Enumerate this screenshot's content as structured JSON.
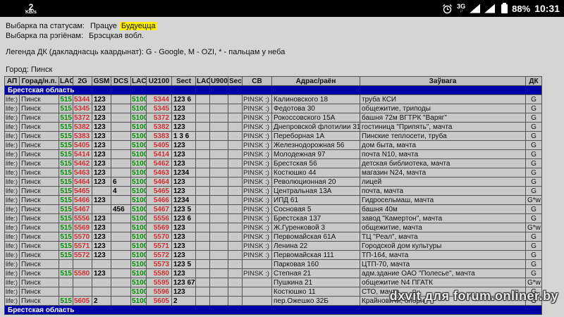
{
  "status_bar": {
    "network_speed_value": "2",
    "network_speed_unit": "KB/s",
    "network_type": "3G",
    "network_arrows": "↓↑",
    "battery_percent": "88%",
    "time": "10:31"
  },
  "filters": {
    "status_label": "Выбарка па статусам:",
    "status_option_1": "Працуе",
    "status_option_2": "Будуецца",
    "region_label": "Выбарка па рэгіёнам:",
    "region_value": "Брэсцкая вобл.",
    "legend": "Легенда ДК (дакладнасць каардынат): G - Google, M - OZI, * - пальцам у неба",
    "city_line": "Город: Пинск"
  },
  "table": {
    "headers": [
      "АП",
      "Горад/н.п.",
      "LAC",
      "2G",
      "GSM",
      "DCS",
      "LAC",
      "U2100",
      "Sect",
      "LAC",
      "U900",
      "Sect",
      "СВ",
      "Адрас/раён",
      "Заўвага",
      "ДК"
    ],
    "section_top": "Брестская область",
    "section_bottom": "Брестская область",
    "rows": [
      {
        "ap": "life:)",
        "city": "Пинск",
        "lac": "515",
        "g2": "5344",
        "gsm": "123",
        "dcs": "",
        "lac3": "5100",
        "u21": "5344",
        "sect3": "123 6",
        "lac9": "",
        "u900": "",
        "sect9": "",
        "sv": "PINSK :)",
        "addr": "Калиновского 18",
        "note": "труба КСИ",
        "dk": "G"
      },
      {
        "ap": "life:)",
        "city": "Пинск",
        "lac": "515",
        "g2": "5345",
        "gsm": "123",
        "dcs": "",
        "lac3": "5100",
        "u21": "5345",
        "sect3": "123",
        "lac9": "",
        "u900": "",
        "sect9": "",
        "sv": "PINSK :)",
        "addr": "Федотова 30",
        "note": "общежитие, триподы",
        "dk": "G"
      },
      {
        "ap": "life:)",
        "city": "Пинск",
        "lac": "515",
        "g2": "5372",
        "gsm": "123",
        "dcs": "",
        "lac3": "5100",
        "u21": "5372",
        "sect3": "123",
        "lac9": "",
        "u900": "",
        "sect9": "",
        "sv": "PINSK :)",
        "addr": "Рокоссовского 15А",
        "note": "башня 72м ВГТРК \"Варяг\"",
        "dk": "G"
      },
      {
        "ap": "life:)",
        "city": "Пинск",
        "lac": "515",
        "g2": "5382",
        "gsm": "123",
        "dcs": "",
        "lac3": "5100",
        "u21": "5382",
        "sect3": "123",
        "lac9": "",
        "u900": "",
        "sect9": "",
        "sv": "PINSK :)",
        "addr": "Днепровской флотилии 31",
        "note": "гостиница \"Припять\", мачта",
        "dk": "G"
      },
      {
        "ap": "life:)",
        "city": "Пинск",
        "lac": "515",
        "g2": "5383",
        "gsm": "123",
        "dcs": "",
        "lac3": "5100",
        "u21": "5383",
        "sect3": "1 3 6",
        "lac9": "",
        "u900": "",
        "sect9": "",
        "sv": "PINSK :)",
        "addr": "Переборная 1А",
        "note": "Пинские теплосети, труба",
        "dk": "G"
      },
      {
        "ap": "life:)",
        "city": "Пинск",
        "lac": "515",
        "g2": "5405",
        "gsm": "123",
        "dcs": "",
        "lac3": "5100",
        "u21": "5405",
        "sect3": "123",
        "lac9": "",
        "u900": "",
        "sect9": "",
        "sv": "PINSK :)",
        "addr": "Железнодорожная 56",
        "note": "дом быта, мачта",
        "dk": "G"
      },
      {
        "ap": "life:)",
        "city": "Пинск",
        "lac": "515",
        "g2": "5414",
        "gsm": "123",
        "dcs": "",
        "lac3": "5100",
        "u21": "5414",
        "sect3": "123",
        "lac9": "",
        "u900": "",
        "sect9": "",
        "sv": "PINSK :)",
        "addr": "Молодежная 97",
        "note": "почта N10, мачта",
        "dk": "G"
      },
      {
        "ap": "life:)",
        "city": "Пинск",
        "lac": "515",
        "g2": "5462",
        "gsm": "123",
        "dcs": "",
        "lac3": "5100",
        "u21": "5462",
        "sect3": "123",
        "lac9": "",
        "u900": "",
        "sect9": "",
        "sv": "PINSK :)",
        "addr": "Брестская 56",
        "note": "детская библиотека, мачта",
        "dk": "G"
      },
      {
        "ap": "life:)",
        "city": "Пинск",
        "lac": "515",
        "g2": "5463",
        "gsm": "123",
        "dcs": "",
        "lac3": "5100",
        "u21": "5463",
        "sect3": "1234",
        "lac9": "",
        "u900": "",
        "sect9": "",
        "sv": "PINSK :)",
        "addr": "Костюшко 44",
        "note": "магазин N24, мачта",
        "dk": "G"
      },
      {
        "ap": "life:)",
        "city": "Пинск",
        "lac": "515",
        "g2": "5464",
        "gsm": "123",
        "dcs": "6",
        "lac3": "5100",
        "u21": "5464",
        "sect3": "123",
        "lac9": "",
        "u900": "",
        "sect9": "",
        "sv": "PINSK :)",
        "addr": "Революционная 20",
        "note": "лицей",
        "dk": "G"
      },
      {
        "ap": "life:)",
        "city": "Пинск",
        "lac": "515",
        "g2": "5465",
        "gsm": "",
        "dcs": "4",
        "lac3": "5100",
        "u21": "5465",
        "sect3": "123",
        "lac9": "",
        "u900": "",
        "sect9": "",
        "sv": "PINSK :)",
        "addr": "Центральная 13А",
        "note": "почта, мачта",
        "dk": "G"
      },
      {
        "ap": "life:)",
        "city": "Пинск",
        "lac": "515",
        "g2": "5466",
        "gsm": "123",
        "dcs": "",
        "lac3": "5100",
        "u21": "5466",
        "sect3": "1234",
        "lac9": "",
        "u900": "",
        "sect9": "",
        "sv": "PINSK :)",
        "addr": "ИПД 61",
        "note": "Гидросельмаш, мачта",
        "dk": "G*w"
      },
      {
        "ap": "life:)",
        "city": "Пинск",
        "lac": "515",
        "g2": "5467",
        "gsm": "",
        "dcs": "456",
        "lac3": "5100",
        "u21": "5467",
        "sect3": "123 5",
        "lac9": "",
        "u900": "",
        "sect9": "",
        "sv": "PINSK :)",
        "addr": "Сосновая 5",
        "note": "башня 40м",
        "dk": "G"
      },
      {
        "ap": "life:)",
        "city": "Пинск",
        "lac": "515",
        "g2": "5556",
        "gsm": "123",
        "dcs": "",
        "lac3": "5100",
        "u21": "5556",
        "sect3": "123 6",
        "lac9": "",
        "u900": "",
        "sect9": "",
        "sv": "PINSK :)",
        "addr": "Брестская 137",
        "note": "завод \"Камертон\", мачта",
        "dk": "G"
      },
      {
        "ap": "life:)",
        "city": "Пинск",
        "lac": "515",
        "g2": "5569",
        "gsm": "123",
        "dcs": "",
        "lac3": "5100",
        "u21": "5569",
        "sect3": "123",
        "lac9": "",
        "u900": "",
        "sect9": "",
        "sv": "PINSK :)",
        "addr": "Ж.Гуренковой 3",
        "note": "общежитие, мачта",
        "dk": "G*w"
      },
      {
        "ap": "life:)",
        "city": "Пинск",
        "lac": "515",
        "g2": "5570",
        "gsm": "123",
        "dcs": "",
        "lac3": "5100",
        "u21": "5570",
        "sect3": "123",
        "lac9": "",
        "u900": "",
        "sect9": "",
        "sv": "PINSK :)",
        "addr": "Первомайская 61А",
        "note": "ТЦ \"Реал\", мачта",
        "dk": "G"
      },
      {
        "ap": "life:)",
        "city": "Пинск",
        "lac": "515",
        "g2": "5571",
        "gsm": "123",
        "dcs": "",
        "lac3": "5100",
        "u21": "5571",
        "sect3": "123",
        "lac9": "",
        "u900": "",
        "sect9": "",
        "sv": "PINSK :)",
        "addr": "Ленина 22",
        "note": "Городской дом культуры",
        "dk": "G"
      },
      {
        "ap": "life:)",
        "city": "Пинск",
        "lac": "515",
        "g2": "5572",
        "gsm": "123",
        "dcs": "",
        "lac3": "5100",
        "u21": "5572",
        "sect3": "123",
        "lac9": "",
        "u900": "",
        "sect9": "",
        "sv": "PINSK :)",
        "addr": "Первомайская 111",
        "note": "ТП-164, мачта",
        "dk": "G"
      },
      {
        "ap": "life:)",
        "city": "Пинск",
        "lac": "",
        "g2": "",
        "gsm": "",
        "dcs": "",
        "lac3": "5100",
        "u21": "5573",
        "sect3": "123 5",
        "lac9": "",
        "u900": "",
        "sect9": "",
        "sv": "",
        "addr": "Парковая 160",
        "note": "ЦТП-70, мачта",
        "dk": "G"
      },
      {
        "ap": "life:)",
        "city": "Пинск",
        "lac": "515",
        "g2": "5580",
        "gsm": "123",
        "dcs": "",
        "lac3": "5100",
        "u21": "5580",
        "sect3": "123",
        "lac9": "",
        "u900": "",
        "sect9": "",
        "sv": "PINSK :)",
        "addr": "Степная 21",
        "note": "адм.здание ОАО \"Полесье\", мачта",
        "dk": "G"
      },
      {
        "ap": "life:)",
        "city": "Пинск",
        "lac": "",
        "g2": "",
        "gsm": "",
        "dcs": "",
        "lac3": "5100",
        "u21": "5595",
        "sect3": "123 67",
        "lac9": "",
        "u900": "",
        "sect9": "",
        "sv": "",
        "addr": "Пушкина 21",
        "note": "общежитие N4 ПГАТК",
        "dk": "G*w"
      },
      {
        "ap": "life:)",
        "city": "Пинск",
        "lac": "",
        "g2": "",
        "gsm": "",
        "dcs": "",
        "lac3": "5100",
        "u21": "5596",
        "sect3": "123",
        "lac9": "",
        "u900": "",
        "sect9": "",
        "sv": "",
        "addr": "Костюшко 11",
        "note": "СТО, мачта",
        "dk": "G"
      },
      {
        "ap": "life:)",
        "city": "Пинск",
        "lac": "515",
        "g2": "5605",
        "gsm": "2",
        "dcs": "",
        "lac3": "5100",
        "u21": "5605",
        "sect3": "2",
        "lac9": "",
        "u900": "",
        "sect9": "",
        "sv": "",
        "addr": "пер.Ожешко 32Б",
        "note": "Крайновичи, опорн",
        "dk": "G"
      }
    ]
  },
  "watermark": "dxvit для forum.onliner.by",
  "colors": {
    "section_blue": "#0000a8",
    "lac_green": "#009100",
    "cid_red": "#d03030",
    "highlight_yellow": "#ffee00",
    "cell_gray": "#c9c9c9"
  }
}
